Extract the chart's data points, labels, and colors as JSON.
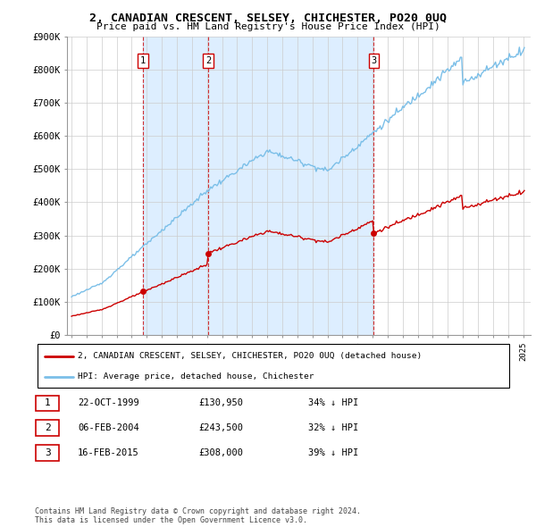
{
  "title": "2, CANADIAN CRESCENT, SELSEY, CHICHESTER, PO20 0UQ",
  "subtitle": "Price paid vs. HM Land Registry's House Price Index (HPI)",
  "background_color": "#ffffff",
  "grid_color": "#cccccc",
  "sale_labels": [
    "1",
    "2",
    "3"
  ],
  "sale_pct": [
    "34% ↓ HPI",
    "32% ↓ HPI",
    "39% ↓ HPI"
  ],
  "sale_date_labels": [
    "22-OCT-1999",
    "06-FEB-2004",
    "16-FEB-2015"
  ],
  "sale_price_labels": [
    "£130,950",
    "£243,500",
    "£308,000"
  ],
  "legend_line1": "2, CANADIAN CRESCENT, SELSEY, CHICHESTER, PO20 0UQ (detached house)",
  "legend_line2": "HPI: Average price, detached house, Chichester",
  "footer": "Contains HM Land Registry data © Crown copyright and database right 2024.\nThis data is licensed under the Open Government Licence v3.0.",
  "hpi_color": "#7bbfe8",
  "price_color": "#cc0000",
  "vline_color": "#cc0000",
  "shade_color": "#ddeeff",
  "ylim": [
    0,
    900000
  ],
  "yticks": [
    0,
    100000,
    200000,
    300000,
    400000,
    500000,
    600000,
    700000,
    800000,
    900000
  ],
  "ytick_labels": [
    "£0",
    "£100K",
    "£200K",
    "£300K",
    "£400K",
    "£500K",
    "£600K",
    "£700K",
    "£800K",
    "£900K"
  ],
  "xlim_start": 1994.7,
  "xlim_end": 2025.5
}
